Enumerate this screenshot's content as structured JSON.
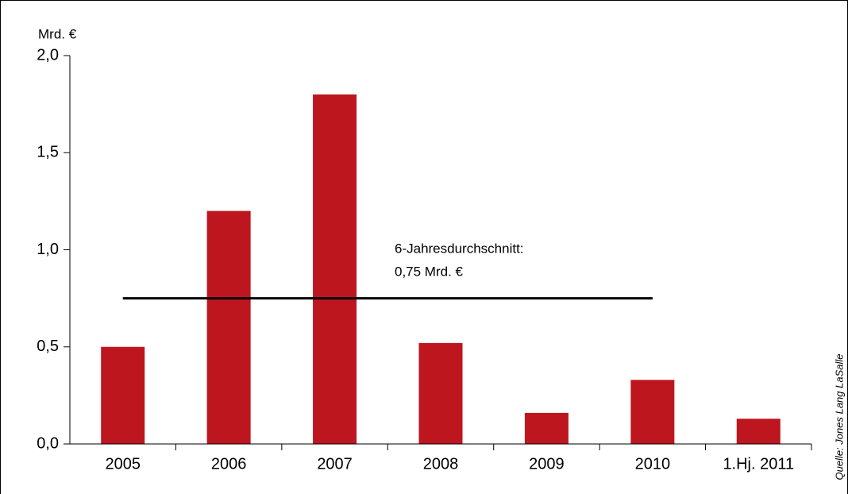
{
  "chart_data": {
    "type": "bar",
    "y_unit": "Mrd. €",
    "categories": [
      "2005",
      "2006",
      "2007",
      "2008",
      "2009",
      "2010",
      "1.Hj. 2011"
    ],
    "values": [
      0.5,
      1.2,
      1.8,
      0.52,
      0.16,
      0.33,
      0.13
    ],
    "color": "#be161e",
    "ylim": [
      0,
      2
    ],
    "yticks": [
      {
        "value": 0,
        "label": "0,0"
      },
      {
        "value": 0.5,
        "label": "0,5"
      },
      {
        "value": 1,
        "label": "1,0"
      },
      {
        "value": 1.5,
        "label": "1,5"
      },
      {
        "value": 2,
        "label": "2,0"
      }
    ],
    "average_line": 0.75,
    "annotation": [
      "6-Jahresdurchschnitt:",
      "0,75 Mrd. €"
    ],
    "source": "Quelle: Jones Lang LaSalle"
  }
}
